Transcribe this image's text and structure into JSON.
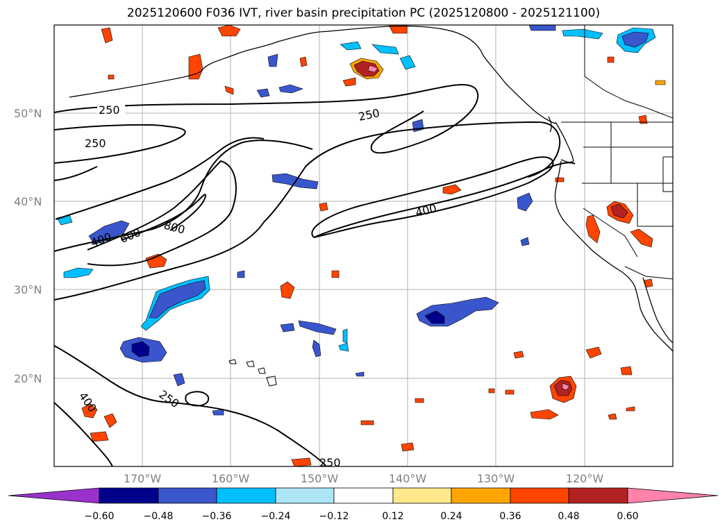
{
  "title": "2025120600 F036 IVT, river basin precipitation PC (2025120800 - 2025121100)",
  "lat_labels": [
    "50°N",
    "40°N",
    "30°N",
    "20°N"
  ],
  "lon_labels": [
    "170°W",
    "160°W",
    "150°W",
    "140°W",
    "130°W",
    "120°W"
  ],
  "contour_labels": [
    "250",
    "250",
    "250",
    "400",
    "600",
    "800",
    "400",
    "400",
    "250",
    "250"
  ],
  "colorbar": {
    "ticks": [
      "−0.60",
      "−0.48",
      "−0.36",
      "−0.24",
      "−0.12",
      "0.12",
      "0.24",
      "0.36",
      "0.48",
      "0.60"
    ],
    "colors": {
      "under": "#9932cc",
      "c1": "#00008b",
      "c2": "#3a56cc",
      "c3": "#00bfff",
      "c4": "#ade5f7",
      "c5": "#ffffff",
      "c6": "#ffe98a",
      "c7": "#ffa500",
      "c8": "#ff4500",
      "c9": "#b22222",
      "over": "#ff82ab"
    }
  },
  "map": {
    "lat_range": [
      10,
      60
    ],
    "lon_range": [
      -180,
      -110
    ]
  }
}
